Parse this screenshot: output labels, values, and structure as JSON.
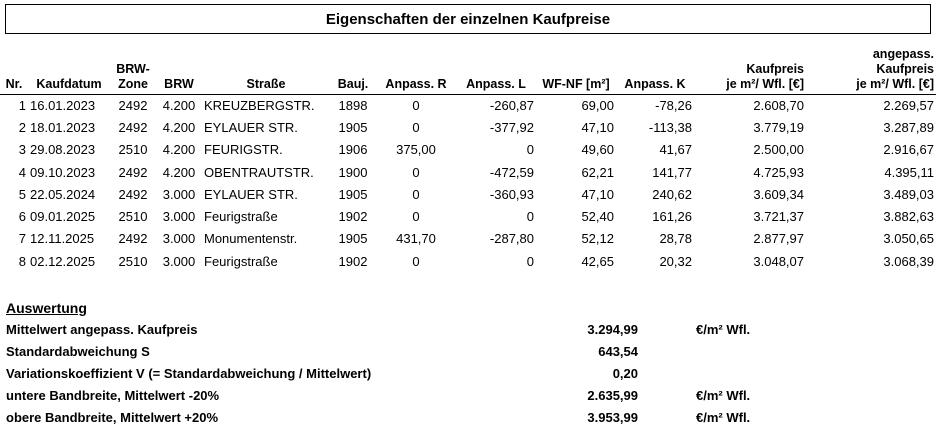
{
  "title": "Eigenschaften der einzelnen Kaufpreise",
  "table": {
    "headers": [
      "Nr.",
      "Kaufdatum",
      "BRW-\nZone",
      "BRW",
      "Straße",
      "Bauj.",
      "Anpass. R",
      "Anpass. L",
      "WF-NF [m²]",
      "Anpass. K",
      "Kaufpreis\nje m²/ Wfl. [€]",
      "angepass.\nKaufpreis\nje m²/ Wfl. [€]"
    ],
    "rows": [
      [
        "1",
        "16.01.2023",
        "2492",
        "4.200",
        "KREUZBERGSTR.",
        "1898",
        "0",
        "-260,87",
        "69,00",
        "-78,26",
        "2.608,70",
        "2.269,57"
      ],
      [
        "2",
        "18.01.2023",
        "2492",
        "4.200",
        "EYLAUER STR.",
        "1905",
        "0",
        "-377,92",
        "47,10",
        "-113,38",
        "3.779,19",
        "3.287,89"
      ],
      [
        "3",
        "29.08.2023",
        "2510",
        "4.200",
        "FEURIGSTR.",
        "1906",
        "375,00",
        "0",
        "49,60",
        "41,67",
        "2.500,00",
        "2.916,67"
      ],
      [
        "4",
        "09.10.2023",
        "2492",
        "4.200",
        "OBENTRAUTSTR.",
        "1900",
        "0",
        "-472,59",
        "62,21",
        "141,77",
        "4.725,93",
        "4.395,11"
      ],
      [
        "5",
        "22.05.2024",
        "2492",
        "3.000",
        "EYLAUER STR.",
        "1905",
        "0",
        "-360,93",
        "47,10",
        "240,62",
        "3.609,34",
        "3.489,03"
      ],
      [
        "6",
        "09.01.2025",
        "2510",
        "3.000",
        "Feurigstraße",
        "1902",
        "0",
        "0",
        "52,40",
        "161,26",
        "3.721,37",
        "3.882,63"
      ],
      [
        "7",
        "12.11.2025",
        "2492",
        "3.000",
        "Monumentenstr.",
        "1905",
        "431,70",
        "-287,80",
        "52,12",
        "28,78",
        "2.877,97",
        "3.050,65"
      ],
      [
        "8",
        "02.12.2025",
        "2510",
        "3.000",
        "Feurigstraße",
        "1902",
        "0",
        "0",
        "42,65",
        "20,32",
        "3.048,07",
        "3.068,39"
      ]
    ]
  },
  "evaluation": {
    "heading": "Auswertung",
    "rows": [
      {
        "label": "Mittelwert angepass. Kaufpreis",
        "value": "3.294,99",
        "unit": "€/m² Wfl."
      },
      {
        "label": "Standardabweichung S",
        "value": "643,54",
        "unit": ""
      },
      {
        "label": "Variationskoeffizient V (= Standardabweichung / Mittelwert)",
        "value": "0,20",
        "unit": ""
      },
      {
        "label": "untere Bandbreite, Mittelwert -20%",
        "value": "2.635,99",
        "unit": "€/m² Wfl."
      },
      {
        "label": "obere Bandbreite, Mittelwert +20%",
        "value": "3.953,99",
        "unit": "€/m² Wfl."
      }
    ]
  }
}
